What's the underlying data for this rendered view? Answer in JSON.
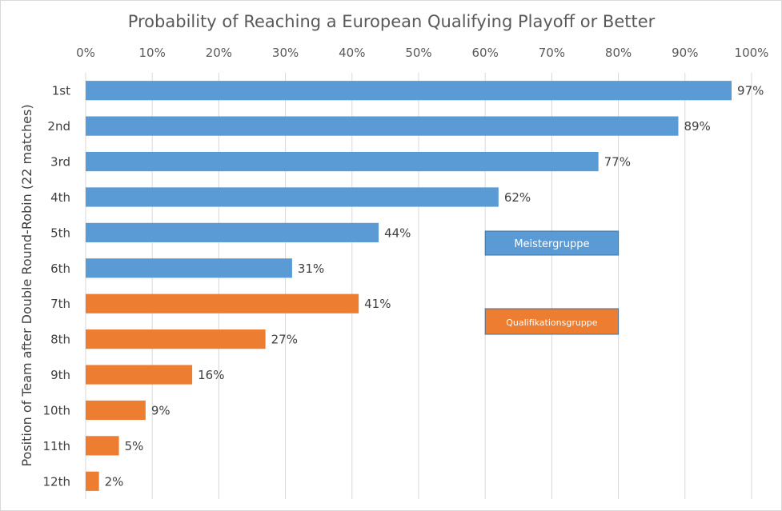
{
  "chart_data": {
    "type": "bar",
    "orientation": "horizontal",
    "title": "Probability of Reaching a European Qualifying Playoff or Better",
    "xlabel": "",
    "ylabel": "Position of Team after Double Round-Robin (22 matches)",
    "xlim": [
      0,
      1
    ],
    "x_ticks": [
      0,
      0.1,
      0.2,
      0.3,
      0.4,
      0.5,
      0.6,
      0.7,
      0.8,
      0.9,
      1.0
    ],
    "x_tick_labels": [
      "0%",
      "10%",
      "20%",
      "30%",
      "40%",
      "50%",
      "60%",
      "70%",
      "80%",
      "90%",
      "100%"
    ],
    "x_axis_position": "top",
    "grid": "vertical",
    "categories": [
      "1st",
      "2nd",
      "3rd",
      "4th",
      "5th",
      "6th",
      "7th",
      "8th",
      "9th",
      "10th",
      "11th",
      "12th"
    ],
    "values": [
      0.97,
      0.89,
      0.77,
      0.62,
      0.44,
      0.31,
      0.41,
      0.27,
      0.16,
      0.09,
      0.05,
      0.02
    ],
    "data_labels": [
      "97%",
      "89%",
      "77%",
      "62%",
      "44%",
      "31%",
      "41%",
      "27%",
      "16%",
      "9%",
      "5%",
      "2%"
    ],
    "groups": [
      "Meistergruppe",
      "Meistergruppe",
      "Meistergruppe",
      "Meistergruppe",
      "Meistergruppe",
      "Meistergruppe",
      "Qualifikationsgruppe",
      "Qualifikationsgruppe",
      "Qualifikationsgruppe",
      "Qualifikationsgruppe",
      "Qualifikationsgruppe",
      "Qualifikationsgruppe"
    ],
    "legend": [
      {
        "label": "Meistergruppe",
        "color": "#5b9bd5"
      },
      {
        "label": "Qualifikationsgruppe",
        "color": "#ed7d31"
      }
    ],
    "legend_placement": "center-right"
  }
}
